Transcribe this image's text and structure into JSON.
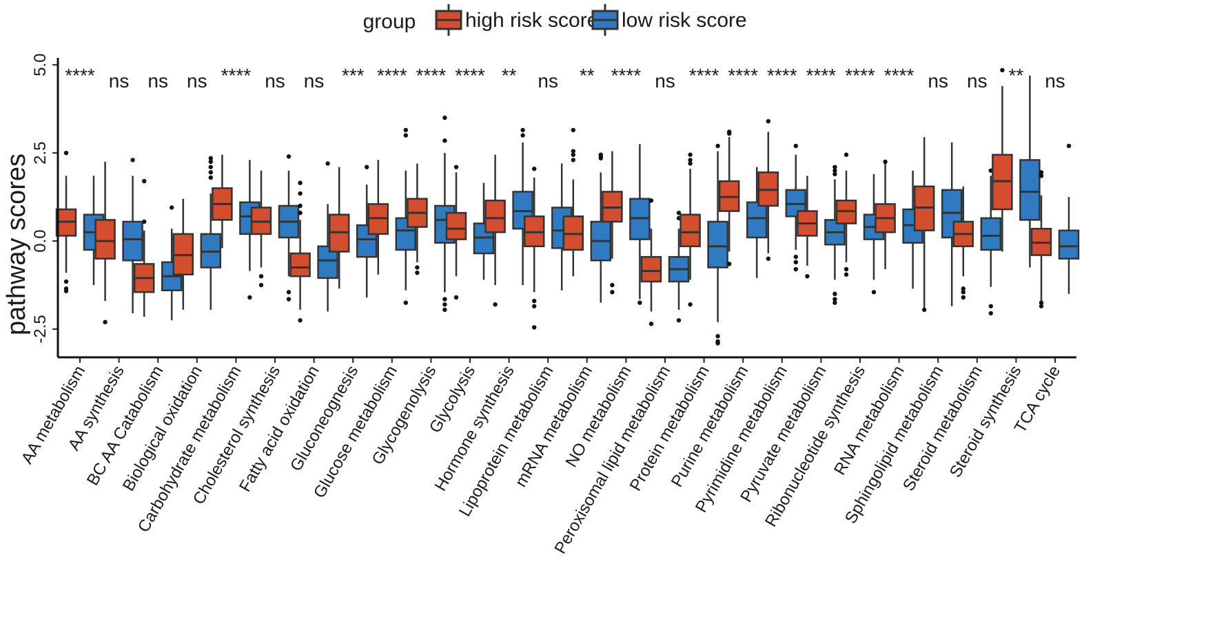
{
  "chart_data": {
    "type": "boxplot",
    "title": "",
    "xlabel": "",
    "ylabel": "pathway scores",
    "ylim": [
      -3.3,
      5.2
    ],
    "yticks": [
      -2.5,
      0.0,
      2.5,
      5.0
    ],
    "ytick_labels": [
      "-2.5",
      "0.0",
      "2.5",
      "5.0"
    ],
    "legend": {
      "title": "group",
      "position": "top",
      "entries": [
        {
          "name": "high risk score",
          "color": "#d24e2e"
        },
        {
          "name": "low risk score",
          "color": "#2f7ac0"
        }
      ]
    },
    "categories": [
      "AA metabolism",
      "AA synthesis",
      "BC AA Catabolism",
      "Biological oxidation",
      "Carbohydrate metabolism",
      "Cholesterol synthesis",
      "Fatty acid oxidation",
      "Gluconeognesis",
      "Glucose metabolism",
      "Glycogenolysis",
      "Glycolysis",
      "Hormone synthesis",
      "Lipoprotein metabolism",
      "mRNA metabolism",
      "NO metabolism",
      "Peroxisomal lipid metabolism",
      "Protein metabolism",
      "Purine metabolism",
      "Pyrimidine metabolism",
      "Pyruvate metabolism",
      "Ribonucleotide synthesis",
      "RNA metabolism",
      "Sphingolipid metabolism",
      "Steroid metabolism",
      "Steroid synthesis",
      "TCA cycle"
    ],
    "significance": [
      "****",
      "ns",
      "ns",
      "ns",
      "****",
      "ns",
      "ns",
      "***",
      "****",
      "****",
      "****",
      "**",
      "ns",
      "**",
      "****",
      "ns",
      "****",
      "****",
      "****",
      "****",
      "****",
      "****",
      "ns",
      "ns",
      "**",
      "ns"
    ],
    "series": [
      {
        "name": "high risk score",
        "color": "#d24e2e",
        "boxes": [
          {
            "min": -0.9,
            "q1": 0.15,
            "median": 0.55,
            "q3": 0.9,
            "max": 1.85,
            "outliers": [
              2.5,
              -1.15,
              -1.35,
              -1.42
            ]
          },
          {
            "min": -1.7,
            "q1": -0.5,
            "median": 0.0,
            "q3": 0.6,
            "max": 2.25,
            "outliers": [
              -2.3
            ]
          },
          {
            "min": -2.15,
            "q1": -1.45,
            "median": -1.05,
            "q3": -0.65,
            "max": 0.3,
            "outliers": [
              1.7,
              0.55
            ]
          },
          {
            "min": -1.95,
            "q1": -0.95,
            "median": -0.4,
            "q3": 0.2,
            "max": 1.2,
            "outliers": []
          },
          {
            "min": -0.2,
            "q1": 0.6,
            "median": 1.05,
            "q3": 1.5,
            "max": 2.45,
            "outliers": []
          },
          {
            "min": -0.75,
            "q1": 0.2,
            "median": 0.55,
            "q3": 0.95,
            "max": 2.0,
            "outliers": [
              -1.0,
              -1.25
            ]
          },
          {
            "min": -1.95,
            "q1": -1.0,
            "median": -0.75,
            "q3": -0.35,
            "max": 0.6,
            "outliers": [
              1.65,
              1.35,
              1.0,
              0.8,
              -2.25
            ]
          },
          {
            "min": -1.35,
            "q1": -0.3,
            "median": 0.25,
            "q3": 0.75,
            "max": 2.1,
            "outliers": []
          },
          {
            "min": -0.95,
            "q1": 0.2,
            "median": 0.65,
            "q3": 1.05,
            "max": 2.3,
            "outliers": []
          },
          {
            "min": -0.6,
            "q1": 0.4,
            "median": 0.8,
            "q3": 1.2,
            "max": 2.2,
            "outliers": [
              -0.75,
              -0.9
            ]
          },
          {
            "min": -1.0,
            "q1": 0.05,
            "median": 0.35,
            "q3": 0.8,
            "max": 1.95,
            "outliers": [
              2.1,
              -1.6
            ]
          },
          {
            "min": -1.25,
            "q1": 0.25,
            "median": 0.65,
            "q3": 1.15,
            "max": 2.45,
            "outliers": [
              -1.8
            ]
          },
          {
            "min": -1.45,
            "q1": -0.15,
            "median": 0.25,
            "q3": 0.7,
            "max": 1.8,
            "outliers": [
              2.05,
              -1.7,
              -1.85,
              -2.45
            ]
          },
          {
            "min": -1.0,
            "q1": -0.25,
            "median": 0.2,
            "q3": 0.7,
            "max": 1.75,
            "outliers": [
              3.15,
              2.55,
              2.45,
              2.3
            ]
          },
          {
            "min": -0.5,
            "q1": 0.55,
            "median": 0.95,
            "q3": 1.4,
            "max": 2.55,
            "outliers": [
              -1.25,
              -1.45
            ]
          },
          {
            "min": -2.0,
            "q1": -1.15,
            "median": -0.85,
            "q3": -0.45,
            "max": 0.35,
            "outliers": [
              1.15,
              -2.35
            ]
          },
          {
            "min": -1.1,
            "q1": -0.15,
            "median": 0.25,
            "q3": 0.75,
            "max": 2.05,
            "outliers": [
              2.45,
              2.3,
              2.2,
              -1.8
            ]
          },
          {
            "min": -0.3,
            "q1": 0.85,
            "median": 1.25,
            "q3": 1.7,
            "max": 2.95,
            "outliers": [
              3.1,
              3.05,
              -0.65
            ]
          },
          {
            "min": -0.35,
            "q1": 1.0,
            "median": 1.45,
            "q3": 1.95,
            "max": 3.1,
            "outliers": [
              3.4,
              -0.5
            ]
          },
          {
            "min": -0.7,
            "q1": 0.15,
            "median": 0.5,
            "q3": 0.85,
            "max": 1.85,
            "outliers": [
              -1.0
            ]
          },
          {
            "min": -0.6,
            "q1": 0.5,
            "median": 0.85,
            "q3": 1.15,
            "max": 2.0,
            "outliers": [
              2.45,
              -0.8,
              -0.95
            ]
          },
          {
            "min": -0.8,
            "q1": 0.25,
            "median": 0.65,
            "q3": 1.05,
            "max": 2.2,
            "outliers": [
              2.25
            ]
          },
          {
            "min": -1.9,
            "q1": 0.3,
            "median": 0.95,
            "q3": 1.55,
            "max": 2.95,
            "outliers": [
              -1.95
            ]
          },
          {
            "min": -1.0,
            "q1": -0.15,
            "median": 0.2,
            "q3": 0.55,
            "max": 1.55,
            "outliers": [
              -1.35,
              -1.45,
              -1.6
            ]
          },
          {
            "min": -0.3,
            "q1": 0.9,
            "median": 1.7,
            "q3": 2.45,
            "max": 4.4,
            "outliers": [
              4.85
            ]
          },
          {
            "min": -1.7,
            "q1": -0.4,
            "median": -0.05,
            "q3": 0.35,
            "max": 1.3,
            "outliers": [
              1.95,
              1.85,
              -1.75,
              -1.85
            ]
          }
        ]
      },
      {
        "name": "low risk score",
        "color": "#2f7ac0",
        "boxes": [
          {
            "min": -1.25,
            "q1": -0.25,
            "median": 0.25,
            "q3": 0.75,
            "max": 1.85,
            "outliers": []
          },
          {
            "min": -2.05,
            "q1": -0.55,
            "median": 0.05,
            "q3": 0.55,
            "max": 1.85,
            "outliers": [
              2.3
            ]
          },
          {
            "min": -2.25,
            "q1": -1.4,
            "median": -1.0,
            "q3": -0.6,
            "max": 0.35,
            "outliers": [
              0.95
            ]
          },
          {
            "min": -1.95,
            "q1": -0.75,
            "median": -0.3,
            "q3": 0.2,
            "max": 1.35,
            "outliers": [
              2.35,
              2.25,
              2.1,
              1.95,
              1.8
            ]
          },
          {
            "min": -0.85,
            "q1": 0.2,
            "median": 0.7,
            "q3": 1.1,
            "max": 2.3,
            "outliers": [
              -1.6
            ]
          },
          {
            "min": -1.0,
            "q1": 0.1,
            "median": 0.55,
            "q3": 1.0,
            "max": 2.0,
            "outliers": [
              2.4,
              -1.45,
              -1.65
            ]
          },
          {
            "min": -2.0,
            "q1": -1.05,
            "median": -0.55,
            "q3": -0.15,
            "max": 1.05,
            "outliers": [
              2.2
            ]
          },
          {
            "min": -1.6,
            "q1": -0.45,
            "median": 0.05,
            "q3": 0.45,
            "max": 1.6,
            "outliers": [
              2.1
            ]
          },
          {
            "min": -1.4,
            "q1": -0.25,
            "median": 0.3,
            "q3": 0.65,
            "max": 2.0,
            "outliers": [
              3.15,
              3.0,
              -1.75
            ]
          },
          {
            "min": -1.45,
            "q1": -0.05,
            "median": 0.6,
            "q3": 1.0,
            "max": 2.5,
            "outliers": [
              3.5,
              2.85,
              -1.65,
              -1.8,
              -1.95
            ]
          },
          {
            "min": -1.1,
            "q1": -0.35,
            "median": 0.1,
            "q3": 0.5,
            "max": 1.65,
            "outliers": []
          },
          {
            "min": -1.25,
            "q1": 0.35,
            "median": 0.85,
            "q3": 1.4,
            "max": 2.8,
            "outliers": [
              3.15,
              3.0
            ]
          },
          {
            "min": -1.4,
            "q1": -0.2,
            "median": 0.3,
            "q3": 0.95,
            "max": 2.2,
            "outliers": []
          },
          {
            "min": -1.75,
            "q1": -0.55,
            "median": 0.0,
            "q3": 0.55,
            "max": 1.95,
            "outliers": [
              2.45,
              2.4,
              2.35
            ]
          },
          {
            "min": -1.65,
            "q1": 0.05,
            "median": 0.65,
            "q3": 1.2,
            "max": 2.75,
            "outliers": [
              -1.75
            ]
          },
          {
            "min": -1.95,
            "q1": -1.15,
            "median": -0.8,
            "q3": -0.45,
            "max": 0.35,
            "outliers": [
              0.8,
              0.65,
              -2.25
            ]
          },
          {
            "min": -2.3,
            "q1": -0.75,
            "median": -0.15,
            "q3": 0.55,
            "max": 2.55,
            "outliers": [
              2.7,
              -2.7,
              -2.85,
              -2.9
            ]
          },
          {
            "min": -1.05,
            "q1": 0.1,
            "median": 0.65,
            "q3": 1.1,
            "max": 2.1,
            "outliers": []
          },
          {
            "min": -0.25,
            "q1": 0.7,
            "median": 1.05,
            "q3": 1.45,
            "max": 2.45,
            "outliers": [
              2.7,
              -0.45,
              -0.6,
              -0.8
            ]
          },
          {
            "min": -1.1,
            "q1": -0.1,
            "median": 0.25,
            "q3": 0.6,
            "max": 1.75,
            "outliers": [
              2.1,
              2.0,
              1.9,
              -1.5,
              -1.65,
              -1.75
            ]
          },
          {
            "min": -1.1,
            "q1": 0.05,
            "median": 0.4,
            "q3": 0.75,
            "max": 1.9,
            "outliers": [
              -1.45
            ]
          },
          {
            "min": -1.35,
            "q1": -0.05,
            "median": 0.45,
            "q3": 0.9,
            "max": 2.0,
            "outliers": []
          },
          {
            "min": -1.85,
            "q1": 0.1,
            "median": 0.8,
            "q3": 1.45,
            "max": 2.8,
            "outliers": []
          },
          {
            "min": -1.3,
            "q1": -0.25,
            "median": 0.15,
            "q3": 0.65,
            "max": 1.85,
            "outliers": [
              2.0,
              -1.85,
              -2.05
            ]
          },
          {
            "min": -0.75,
            "q1": 0.6,
            "median": 1.4,
            "q3": 2.3,
            "max": 4.7,
            "outliers": []
          },
          {
            "min": -1.5,
            "q1": -0.5,
            "median": -0.15,
            "q3": 0.3,
            "max": 1.25,
            "outliers": [
              2.7
            ]
          }
        ]
      }
    ]
  }
}
